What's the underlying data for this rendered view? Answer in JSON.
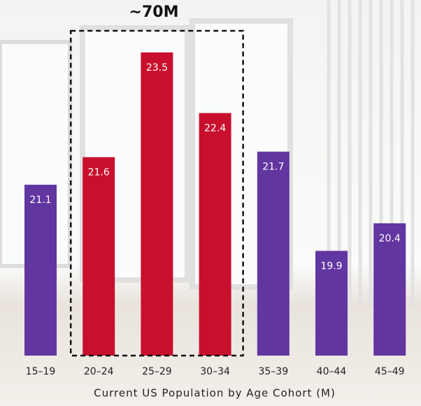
{
  "chart_data": {
    "type": "bar",
    "x_label": "Current US Population by Age Cohort (M)",
    "annotation": "~70M",
    "categories": [
      "15–19",
      "20–24",
      "25–29",
      "30–34",
      "35–39",
      "40–44",
      "45–49"
    ],
    "values": [
      21.1,
      21.6,
      23.5,
      22.4,
      21.7,
      19.9,
      20.4
    ],
    "colors": [
      "#6236a0",
      "#c8102e",
      "#c8102e",
      "#c8102e",
      "#6236a0",
      "#6236a0",
      "#6236a0"
    ],
    "highlight_color": "#c8102e",
    "ylim": [
      18,
      24
    ]
  }
}
